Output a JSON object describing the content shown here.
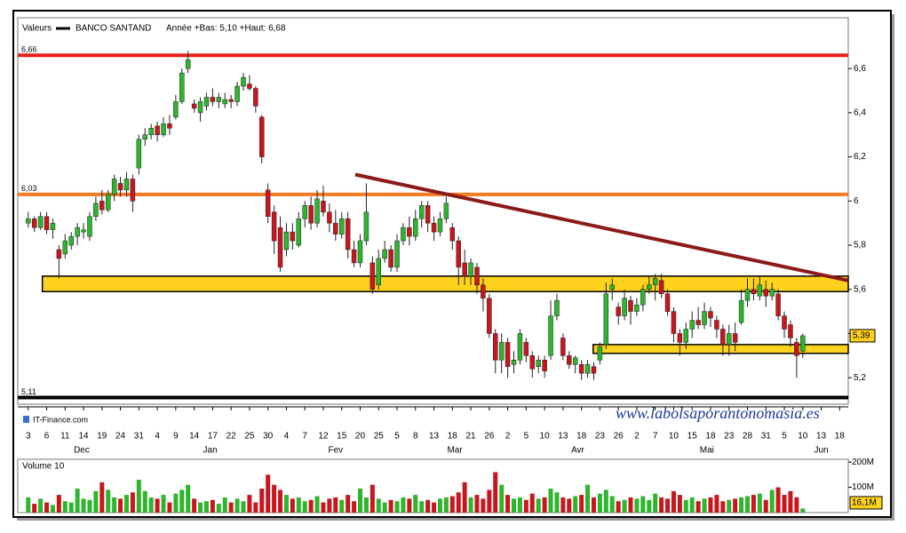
{
  "chart_data": {
    "type": "candlestick",
    "title": "Valeurs",
    "series_name": "BANCO SANTAND",
    "subtitle": "Année +Bas: 5,10 +Haut: 6,68",
    "source": "IT-Finance.com",
    "watermark": "www.labolsaporantonomasia.es",
    "up_color": "#2db52d",
    "down_color": "#c8161e",
    "candles": {
      "open": [
        5.9,
        5.92,
        5.88,
        5.93,
        5.87,
        5.78,
        5.76,
        5.8,
        5.84,
        5.86,
        5.84,
        5.93,
        6.0,
        5.96,
        6.03,
        6.08,
        6.05,
        6.1,
        6.15,
        6.28,
        6.3,
        6.34,
        6.3,
        6.35,
        6.38,
        6.45,
        6.6,
        6.44,
        6.4,
        6.43,
        6.47,
        6.45,
        6.44,
        6.46,
        6.45,
        6.52,
        6.53,
        6.51,
        6.38,
        6.05,
        5.95,
        5.88,
        5.78,
        5.86,
        5.8,
        5.92,
        5.98,
        5.9,
        6.0,
        5.95,
        5.9,
        5.85,
        5.92,
        5.78,
        5.72,
        5.82,
        5.72,
        5.62,
        5.74,
        5.78,
        5.7,
        5.82,
        5.88,
        5.84,
        5.92,
        5.98,
        5.9,
        5.86,
        5.92,
        5.88,
        5.82,
        5.72,
        5.66,
        5.7,
        5.62,
        5.56,
        5.4,
        5.28,
        5.36,
        5.26,
        5.28,
        5.36,
        5.3,
        5.25,
        5.28,
        5.3,
        5.48,
        5.38,
        5.3,
        5.26,
        5.26,
        5.22,
        5.25,
        5.28,
        5.35,
        5.6,
        5.52,
        5.48,
        5.55,
        5.5,
        5.53,
        5.6,
        5.62,
        5.64,
        5.58,
        5.5,
        5.4,
        5.36,
        5.42,
        5.46,
        5.44,
        5.5,
        5.46,
        5.42,
        5.35,
        5.4,
        5.45,
        5.55,
        5.6,
        5.57,
        5.6,
        5.57,
        5.58,
        5.48,
        5.44,
        5.36,
        5.32
      ],
      "high": [
        5.95,
        5.93,
        5.95,
        5.95,
        5.92,
        5.8,
        5.85,
        5.86,
        5.9,
        5.9,
        5.95,
        6.02,
        6.05,
        6.05,
        6.12,
        6.11,
        6.13,
        6.12,
        6.3,
        6.33,
        6.35,
        6.36,
        6.38,
        6.39,
        6.48,
        6.6,
        6.68,
        6.46,
        6.47,
        6.49,
        6.51,
        6.49,
        6.49,
        6.48,
        6.54,
        6.58,
        6.57,
        6.52,
        6.39,
        6.08,
        5.98,
        5.93,
        5.9,
        5.9,
        5.95,
        6.0,
        6.02,
        6.05,
        6.07,
        5.99,
        5.96,
        5.95,
        5.95,
        5.82,
        5.85,
        6.08,
        5.75,
        5.78,
        5.82,
        5.8,
        5.85,
        5.9,
        5.93,
        5.96,
        6.0,
        6.0,
        5.93,
        5.95,
        6.02,
        5.9,
        5.84,
        5.78,
        5.74,
        5.72,
        5.65,
        5.58,
        5.42,
        5.4,
        5.38,
        5.32,
        5.42,
        5.38,
        5.32,
        5.3,
        5.3,
        5.55,
        5.58,
        5.4,
        5.32,
        5.3,
        5.28,
        5.28,
        5.27,
        5.36,
        5.63,
        5.65,
        5.54,
        5.6,
        5.57,
        5.56,
        5.62,
        5.66,
        5.67,
        5.67,
        5.6,
        5.52,
        5.42,
        5.45,
        5.5,
        5.52,
        5.54,
        5.52,
        5.48,
        5.44,
        5.44,
        5.45,
        5.6,
        5.65,
        5.65,
        5.66,
        5.64,
        5.63,
        5.6,
        5.5,
        5.46,
        5.38,
        5.4
      ],
      "low": [
        5.88,
        5.86,
        5.87,
        5.85,
        5.83,
        5.65,
        5.74,
        5.78,
        5.8,
        5.83,
        5.82,
        5.91,
        5.94,
        5.95,
        6.0,
        6.02,
        6.02,
        5.95,
        6.12,
        6.25,
        6.28,
        6.27,
        6.29,
        6.3,
        6.37,
        6.44,
        6.58,
        6.4,
        6.36,
        6.41,
        6.43,
        6.42,
        6.42,
        6.42,
        6.43,
        6.5,
        6.5,
        6.4,
        6.17,
        5.9,
        5.76,
        5.68,
        5.75,
        5.78,
        5.79,
        5.88,
        5.87,
        5.88,
        5.93,
        5.86,
        5.82,
        5.83,
        5.74,
        5.7,
        5.7,
        5.8,
        5.58,
        5.6,
        5.72,
        5.68,
        5.68,
        5.8,
        5.8,
        5.82,
        5.88,
        5.86,
        5.82,
        5.84,
        5.9,
        5.78,
        5.62,
        5.62,
        5.62,
        5.58,
        5.5,
        5.38,
        5.22,
        5.22,
        5.2,
        5.22,
        5.26,
        5.27,
        5.2,
        5.22,
        5.2,
        5.28,
        5.46,
        5.28,
        5.24,
        5.22,
        5.19,
        5.2,
        5.19,
        5.26,
        5.33,
        5.55,
        5.44,
        5.46,
        5.44,
        5.48,
        5.5,
        5.58,
        5.55,
        5.56,
        5.48,
        5.36,
        5.3,
        5.33,
        5.38,
        5.42,
        5.42,
        5.43,
        5.38,
        5.3,
        5.3,
        5.32,
        5.44,
        5.52,
        5.55,
        5.55,
        5.52,
        5.55,
        5.46,
        5.38,
        5.34,
        5.2,
        5.29
      ],
      "close": [
        5.92,
        5.88,
        5.93,
        5.87,
        5.9,
        5.74,
        5.82,
        5.84,
        5.88,
        5.87,
        5.93,
        5.99,
        5.96,
        6.03,
        6.1,
        6.05,
        6.1,
        6.0,
        6.28,
        6.3,
        6.33,
        6.3,
        6.35,
        6.33,
        6.45,
        6.58,
        6.64,
        6.42,
        6.45,
        6.47,
        6.45,
        6.47,
        6.46,
        6.45,
        6.52,
        6.56,
        6.51,
        6.43,
        6.2,
        5.93,
        5.82,
        5.7,
        5.86,
        5.82,
        5.92,
        5.98,
        5.9,
        6.01,
        5.95,
        5.9,
        5.85,
        5.92,
        5.78,
        5.72,
        5.82,
        5.95,
        5.6,
        5.74,
        5.78,
        5.7,
        5.82,
        5.88,
        5.84,
        5.92,
        5.98,
        5.9,
        5.86,
        5.92,
        5.99,
        5.82,
        5.7,
        5.66,
        5.72,
        5.62,
        5.56,
        5.4,
        5.28,
        5.36,
        5.25,
        5.28,
        5.4,
        5.3,
        5.24,
        5.28,
        5.23,
        5.48,
        5.55,
        5.3,
        5.26,
        5.29,
        5.22,
        5.26,
        5.22,
        5.34,
        5.58,
        5.62,
        5.48,
        5.56,
        5.5,
        5.53,
        5.6,
        5.62,
        5.65,
        5.58,
        5.5,
        5.4,
        5.36,
        5.42,
        5.46,
        5.44,
        5.5,
        5.47,
        5.42,
        5.35,
        5.4,
        5.36,
        5.55,
        5.6,
        5.58,
        5.62,
        5.57,
        5.6,
        5.48,
        5.42,
        5.38,
        5.3,
        5.39
      ],
      "last_label": "5,39"
    },
    "ylim": [
      5.08,
      6.83
    ],
    "yticks": [
      {
        "value": 5.2,
        "label": "5,2"
      },
      {
        "value": 5.4,
        "label": "5,4"
      },
      {
        "value": 5.6,
        "label": "5,6"
      },
      {
        "value": 5.8,
        "label": "5,8"
      },
      6,
      {
        "value": 6.2,
        "label": "6,2"
      },
      {
        "value": 6.4,
        "label": "6,4"
      },
      {
        "value": 6.6,
        "label": "6,6"
      }
    ],
    "xlim": [
      -1.7,
      133.4
    ],
    "xticks": [
      {
        "value": 0,
        "label": "3"
      },
      {
        "value": 3,
        "label": "6"
      },
      {
        "value": 6,
        "label": "11"
      },
      {
        "value": 9,
        "label": "14"
      },
      {
        "value": 12,
        "label": "19"
      },
      {
        "value": 15,
        "label": "24"
      },
      {
        "value": 18,
        "label": "31"
      },
      {
        "value": 21,
        "label": "4"
      },
      {
        "value": 24,
        "label": "9"
      },
      {
        "value": 27,
        "label": "14"
      },
      {
        "value": 30,
        "label": "17"
      },
      {
        "value": 33,
        "label": "22"
      },
      {
        "value": 36,
        "label": "25"
      },
      {
        "value": 39,
        "label": "30"
      },
      {
        "value": 42,
        "label": "4"
      },
      {
        "value": 45,
        "label": "7"
      },
      {
        "value": 48,
        "label": "12"
      },
      {
        "value": 51,
        "label": "15"
      },
      {
        "value": 54,
        "label": "20"
      },
      {
        "value": 57,
        "label": "25"
      },
      {
        "value": 60,
        "label": "5"
      },
      {
        "value": 63,
        "label": "8"
      },
      {
        "value": 66,
        "label": "13"
      },
      {
        "value": 69,
        "label": "18"
      },
      {
        "value": 72,
        "label": "21"
      },
      {
        "value": 75,
        "label": "26"
      },
      {
        "value": 78,
        "label": "2"
      },
      {
        "value": 81,
        "label": "5"
      },
      {
        "value": 84,
        "label": "10"
      },
      {
        "value": 87,
        "label": "13"
      },
      {
        "value": 90,
        "label": "18"
      },
      {
        "value": 93,
        "label": "23"
      },
      {
        "value": 96,
        "label": "26"
      },
      {
        "value": 99,
        "label": "2"
      },
      {
        "value": 102,
        "label": "7"
      },
      {
        "value": 105,
        "label": "10"
      },
      {
        "value": 108,
        "label": "15"
      },
      {
        "value": 111,
        "label": "18"
      },
      {
        "value": 114,
        "label": "23"
      },
      {
        "value": 117,
        "label": "28"
      },
      {
        "value": 120,
        "label": "31"
      },
      {
        "value": 123,
        "label": "5"
      },
      {
        "value": 126,
        "label": "10"
      },
      {
        "value": 129,
        "label": "13"
      },
      {
        "value": 132,
        "label": "18"
      }
    ],
    "month_ticks": [
      {
        "value": 8.7,
        "label": "Dec"
      },
      {
        "value": 29.6,
        "label": "Jan"
      },
      {
        "value": 50,
        "label": "Fev"
      },
      {
        "value": 69.4,
        "label": "Mar"
      },
      {
        "value": 89.4,
        "label": "Avr"
      },
      {
        "value": 110.4,
        "label": "Mai"
      },
      {
        "value": 129,
        "label": "Jun"
      }
    ],
    "levels": [
      {
        "value": 6.66,
        "label": "6,66",
        "color": "#e8201a"
      },
      {
        "value": 6.03,
        "label": "6,03",
        "color": "#f47a20"
      },
      {
        "value": 5.11,
        "label": "5,11",
        "color": "#000000"
      }
    ],
    "zones": [
      {
        "from": 5.59,
        "to": 5.66,
        "start": 2.3,
        "color": "#ffd21e"
      },
      {
        "from": 5.31,
        "to": 5.35,
        "start": 91.9,
        "color": "#ffd21e"
      }
    ],
    "trendline": {
      "x": [
        53.2,
        133.4
      ],
      "y": [
        6.12,
        5.64
      ],
      "color": "#8b1a1a"
    },
    "volume": {
      "name": "Volume 10",
      "values": [
        60,
        35,
        55,
        40,
        30,
        70,
        45,
        40,
        95,
        55,
        50,
        85,
        120,
        90,
        60,
        55,
        70,
        80,
        130,
        85,
        60,
        55,
        70,
        40,
        75,
        90,
        110,
        55,
        40,
        45,
        50,
        35,
        60,
        40,
        55,
        45,
        70,
        40,
        95,
        150,
        110,
        90,
        70,
        55,
        60,
        45,
        50,
        65,
        40,
        55,
        60,
        50,
        70,
        45,
        95,
        60,
        110,
        55,
        40,
        50,
        45,
        60,
        55,
        70,
        45,
        50,
        40,
        55,
        60,
        65,
        80,
        120,
        60,
        70,
        55,
        90,
        160,
        110,
        70,
        55,
        60,
        50,
        75,
        55,
        60,
        95,
        80,
        60,
        55,
        65,
        70,
        110,
        60,
        75,
        90,
        65,
        45,
        50,
        60,
        55,
        65,
        50,
        75,
        60,
        55,
        85,
        70,
        50,
        60,
        45,
        55,
        60,
        70,
        45,
        50,
        55,
        60,
        65,
        70,
        75,
        50,
        90,
        100,
        70,
        85,
        60,
        16.1
      ],
      "last_label": "16,1M",
      "ylim": [
        0,
        211
      ],
      "yticks": [
        {
          "value": 100,
          "label": "100M"
        },
        {
          "value": 200,
          "label": "200M"
        }
      ]
    }
  }
}
